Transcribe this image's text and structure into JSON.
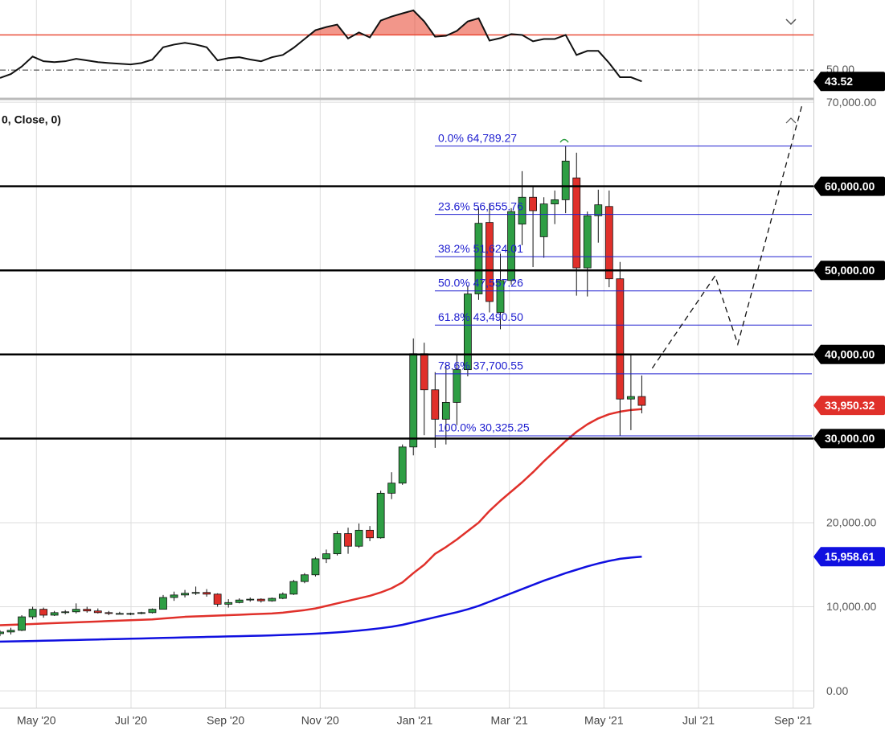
{
  "chart_data": [
    {
      "type": "oscillator",
      "x": [
        -0.77,
        -0.54,
        -0.31,
        -0.08,
        0.15,
        0.38,
        0.61,
        0.84,
        1.07,
        1.3,
        1.53,
        1.76,
        1.99,
        2.22,
        2.45,
        2.68,
        2.91,
        3.14,
        3.37,
        3.6,
        3.83,
        4.06,
        4.29,
        4.52,
        4.75,
        4.98,
        5.21,
        5.44,
        5.67,
        5.9,
        6.13,
        6.36,
        6.59,
        6.82,
        7.05,
        7.28,
        7.51,
        7.74,
        7.97,
        8.2,
        8.43,
        8.66,
        8.89,
        9.12,
        9.35,
        9.58,
        9.81,
        10.04,
        10.27,
        10.5,
        10.73,
        10.96,
        11.19,
        11.42,
        11.65,
        11.88,
        12.11,
        12.34,
        12.57,
        12.8
      ],
      "series": [
        {
          "color": "#111111",
          "values": [
            45.5,
            47.7,
            52,
            57.7,
            55,
            54.5,
            55,
            56.4,
            55.5,
            54.5,
            54,
            53.6,
            53.2,
            54,
            55.9,
            63,
            64.5,
            65.5,
            64.5,
            63,
            55.5,
            56.8,
            57.3,
            56,
            55,
            57.3,
            58.6,
            62.7,
            67.7,
            72.7,
            74.5,
            75.9,
            68,
            71.4,
            68.6,
            78.2,
            80.5,
            82.3,
            84,
            77.7,
            69,
            69.5,
            72.3,
            77.7,
            79.5,
            66.8,
            68.2,
            70.5,
            70,
            66.4,
            67.7,
            67.7,
            70,
            58.6,
            60.9,
            60.9,
            54,
            45.9,
            45.9,
            43.52
          ]
        }
      ],
      "ylim": [
        34,
        89
      ],
      "yticks": [
        {
          "value": 50,
          "label": "50.00"
        }
      ],
      "levels": [
        {
          "value": 70,
          "color": "#e8402a"
        }
      ],
      "fill_color": "#e8402a",
      "last_label": {
        "value": 43.52,
        "label": "43.52"
      }
    },
    {
      "type": "candlestick",
      "study_label": "0, Close, 0)",
      "x": [
        -0.77,
        -0.54,
        -0.31,
        -0.08,
        0.15,
        0.38,
        0.61,
        0.84,
        1.07,
        1.3,
        1.53,
        1.76,
        1.99,
        2.22,
        2.45,
        2.68,
        2.91,
        3.14,
        3.37,
        3.6,
        3.83,
        4.06,
        4.29,
        4.52,
        4.75,
        4.98,
        5.21,
        5.44,
        5.67,
        5.9,
        6.13,
        6.36,
        6.59,
        6.82,
        7.05,
        7.28,
        7.51,
        7.74,
        7.97,
        8.2,
        8.43,
        8.66,
        8.89,
        9.12,
        9.35,
        9.58,
        9.81,
        10.04,
        10.27,
        10.5,
        10.73,
        10.96,
        11.19,
        11.42,
        11.65,
        11.88,
        12.11,
        12.34,
        12.57,
        12.8
      ],
      "open": [
        6800,
        7000,
        7200,
        8800,
        9700,
        9000,
        9300,
        9400,
        9700,
        9500,
        9300,
        9200,
        9200,
        9200,
        9300,
        9700,
        11100,
        11400,
        11600,
        11700,
        11500,
        10300,
        10500,
        10800,
        10900,
        10700,
        11000,
        11500,
        13000,
        13800,
        15700,
        16300,
        18700,
        17200,
        19100,
        18200,
        23500,
        24700,
        29000,
        40100,
        35800,
        32300,
        34300,
        38200,
        47200,
        55700,
        45000,
        48800,
        55500,
        58700,
        54000,
        57900,
        58400,
        61000,
        50300,
        56500,
        57600,
        49000,
        34700,
        35000
      ],
      "high": [
        7200,
        7500,
        9000,
        10000,
        9900,
        9500,
        9600,
        10400,
        10000,
        9800,
        9500,
        9400,
        9300,
        9400,
        9800,
        11400,
        11800,
        12000,
        12400,
        12100,
        11600,
        10900,
        11000,
        11100,
        11000,
        11100,
        11700,
        13200,
        14000,
        15900,
        16800,
        19000,
        19400,
        19900,
        19600,
        23800,
        26000,
        29300,
        41900,
        41400,
        37900,
        38700,
        40000,
        48200,
        57500,
        58000,
        52000,
        57400,
        61800,
        60000,
        58700,
        59500,
        64800,
        64000,
        57000,
        59600,
        59500,
        51000,
        39900,
        37500
      ],
      "low": [
        6500,
        6700,
        7100,
        8500,
        8700,
        8900,
        9100,
        9200,
        9300,
        9200,
        9000,
        9100,
        9000,
        9100,
        9200,
        9700,
        10700,
        11100,
        11400,
        11200,
        10000,
        9900,
        10400,
        10600,
        10500,
        10600,
        10900,
        11400,
        12800,
        13600,
        15200,
        16100,
        16300,
        17000,
        17800,
        18100,
        22800,
        24500,
        28000,
        30400,
        28900,
        29300,
        31600,
        37400,
        46500,
        45000,
        43000,
        48300,
        53000,
        50400,
        51500,
        55500,
        56800,
        47000,
        46900,
        53300,
        48000,
        30300,
        31000,
        33000
      ],
      "close": [
        7000,
        7200,
        8800,
        9700,
        9000,
        9300,
        9400,
        9700,
        9500,
        9300,
        9200,
        9200,
        9200,
        9300,
        9700,
        11100,
        11400,
        11600,
        11700,
        11500,
        10300,
        10500,
        10800,
        10900,
        10700,
        11000,
        11500,
        13000,
        13800,
        15700,
        16300,
        18700,
        17200,
        19100,
        18200,
        23500,
        24700,
        29000,
        40100,
        35800,
        32300,
        34300,
        38200,
        47200,
        55600,
        46300,
        48800,
        57000,
        58700,
        57100,
        57900,
        58400,
        63000,
        50300,
        56500,
        57800,
        49000,
        34700,
        35000,
        33950.32
      ],
      "up_color": "#2e9e44",
      "down_color": "#e0302a",
      "moving_averages": [
        {
          "color": "#e0302a",
          "values": [
            7800,
            7850,
            7900,
            7950,
            8000,
            8050,
            8100,
            8150,
            8200,
            8250,
            8300,
            8350,
            8400,
            8450,
            8500,
            8600,
            8700,
            8800,
            8850,
            8900,
            8950,
            9000,
            9050,
            9100,
            9150,
            9200,
            9300,
            9450,
            9600,
            9800,
            10100,
            10400,
            10700,
            11000,
            11300,
            11700,
            12200,
            12900,
            14000,
            15000,
            16300,
            17100,
            18000,
            19000,
            20000,
            21400,
            22600,
            23700,
            24800,
            26000,
            27300,
            28500,
            29700,
            30800,
            31700,
            32400,
            32900,
            33200,
            33400,
            33500
          ]
        },
        {
          "color": "#1010e0",
          "values": [
            5850,
            5880,
            5900,
            5930,
            5960,
            5990,
            6020,
            6050,
            6080,
            6110,
            6140,
            6170,
            6200,
            6230,
            6260,
            6290,
            6320,
            6350,
            6380,
            6410,
            6440,
            6470,
            6500,
            6530,
            6560,
            6600,
            6640,
            6690,
            6740,
            6800,
            6870,
            6950,
            7050,
            7170,
            7300,
            7450,
            7620,
            7850,
            8150,
            8450,
            8750,
            9050,
            9350,
            9700,
            10100,
            10600,
            11100,
            11600,
            12100,
            12600,
            13100,
            13550,
            14000,
            14400,
            14800,
            15150,
            15450,
            15700,
            15850,
            15950
          ]
        }
      ],
      "xlim": [
        -0.77,
        16.43
      ],
      "xticks": [
        {
          "value": 0,
          "label": "May '20"
        },
        {
          "value": 2,
          "label": "Jul '20"
        },
        {
          "value": 4,
          "label": "Sep '20"
        },
        {
          "value": 6,
          "label": "Nov '20"
        },
        {
          "value": 8,
          "label": "Jan '21"
        },
        {
          "value": 10,
          "label": "Mar '21"
        },
        {
          "value": 12,
          "label": "May '21"
        },
        {
          "value": 14,
          "label": "Jul '21"
        },
        {
          "value": 16,
          "label": "Sep '21"
        }
      ],
      "ylim": [
        -2000,
        70200
      ],
      "yticks": [
        {
          "value": 0,
          "label": "0.00"
        },
        {
          "value": 10000,
          "label": "10,000.00"
        },
        {
          "value": 20000,
          "label": "20,000.00"
        },
        {
          "value": 70000,
          "label": "70,000.00"
        }
      ],
      "grid": true,
      "levels": [
        {
          "value": 30000,
          "label": "30,000.00"
        },
        {
          "value": 40000,
          "label": "40,000.00"
        },
        {
          "value": 50000,
          "label": "50,000.00"
        },
        {
          "value": 60000,
          "label": "60,000.00"
        }
      ],
      "fibonacci": {
        "color": "#2020d0",
        "levels": [
          {
            "value": 64789.27,
            "label": "0.0% 64,789.27"
          },
          {
            "value": 56655.76,
            "label": "23.6% 56,655.76"
          },
          {
            "value": 51624.01,
            "label": "38.2% 51,624.01"
          },
          {
            "value": 47557.26,
            "label": "50.0% 47,557.26"
          },
          {
            "value": 43490.5,
            "label": "61.8% 43,490.50"
          },
          {
            "value": 37700.55,
            "label": "78.6% 37,700.55"
          },
          {
            "value": 30325.25,
            "label": "100.0% 30,325.25"
          }
        ]
      },
      "price_tags": [
        {
          "value": 33950.32,
          "label": "33,950.32",
          "color": "#e0302a"
        },
        {
          "value": 15958.61,
          "label": "15,958.61",
          "color": "#1010e0"
        }
      ],
      "projection": {
        "x": [
          13.02,
          14.35,
          14.83,
          16.2
        ],
        "values": [
          38350,
          49350,
          41220,
          69900
        ]
      }
    }
  ]
}
